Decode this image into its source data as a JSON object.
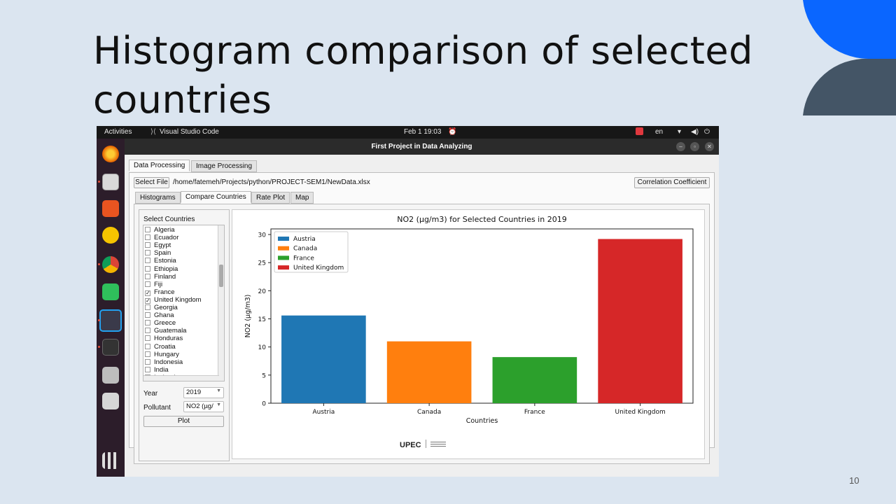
{
  "slide": {
    "title": "Histogram comparison of selected countries",
    "page_number": "10",
    "colors": {
      "deco_blue": "#0a66ff",
      "deco_dark": "#445566"
    }
  },
  "topbar": {
    "activities": "Activities",
    "app_name": "Visual Studio Code",
    "datetime": "Feb 1  19:03",
    "lang": "en"
  },
  "window": {
    "title": "First Project in Data Analyzing"
  },
  "main_tabs": [
    "Data Processing",
    "Image Processing"
  ],
  "file": {
    "select_label": "Select File",
    "path": "/home/fatemeh/Projects/python/PROJECT-SEM1/NewData.xlsx",
    "corr_label": "Correlation Coefficient"
  },
  "sub_tabs": [
    "Histograms",
    "Compare Countries",
    "Rate Plot",
    "Map"
  ],
  "countries": {
    "heading": "Select Countries",
    "items": [
      {
        "name": "Algeria",
        "checked": false
      },
      {
        "name": "Ecuador",
        "checked": false
      },
      {
        "name": "Egypt",
        "checked": false
      },
      {
        "name": "Spain",
        "checked": false
      },
      {
        "name": "Estonia",
        "checked": false
      },
      {
        "name": "Ethiopia",
        "checked": false
      },
      {
        "name": "Finland",
        "checked": false
      },
      {
        "name": "Fiji",
        "checked": false
      },
      {
        "name": "France",
        "checked": true
      },
      {
        "name": "United Kingdom",
        "checked": true
      },
      {
        "name": "Georgia",
        "checked": false
      },
      {
        "name": "Ghana",
        "checked": false
      },
      {
        "name": "Greece",
        "checked": false
      },
      {
        "name": "Guatemala",
        "checked": false
      },
      {
        "name": "Honduras",
        "checked": false
      },
      {
        "name": "Croatia",
        "checked": false
      },
      {
        "name": "Hungary",
        "checked": false
      },
      {
        "name": "Indonesia",
        "checked": false
      },
      {
        "name": "India",
        "checked": false
      },
      {
        "name": "Iceland",
        "checked": false
      }
    ]
  },
  "controls": {
    "year_label": "Year",
    "year_value": "2019",
    "pollutant_label": "Pollutant",
    "pollutant_value": "NO2 (µg/",
    "plot_label": "Plot"
  },
  "footer_logo": "UPEC",
  "chart_data": {
    "type": "bar",
    "title": "NO2 (µg/m3) for Selected Countries in 2019",
    "xlabel": "Countries",
    "ylabel": "NO2 (µg/m3)",
    "categories": [
      "Austria",
      "Canada",
      "France",
      "United Kingdom"
    ],
    "values": [
      15.6,
      11.0,
      8.2,
      29.2
    ],
    "colors": [
      "#1f77b4",
      "#ff7f0e",
      "#2ca02c",
      "#d62728"
    ],
    "ylim": [
      0,
      31
    ],
    "yticks": [
      0,
      5,
      10,
      15,
      20,
      25,
      30
    ],
    "legend": "top-left",
    "grid": false
  }
}
